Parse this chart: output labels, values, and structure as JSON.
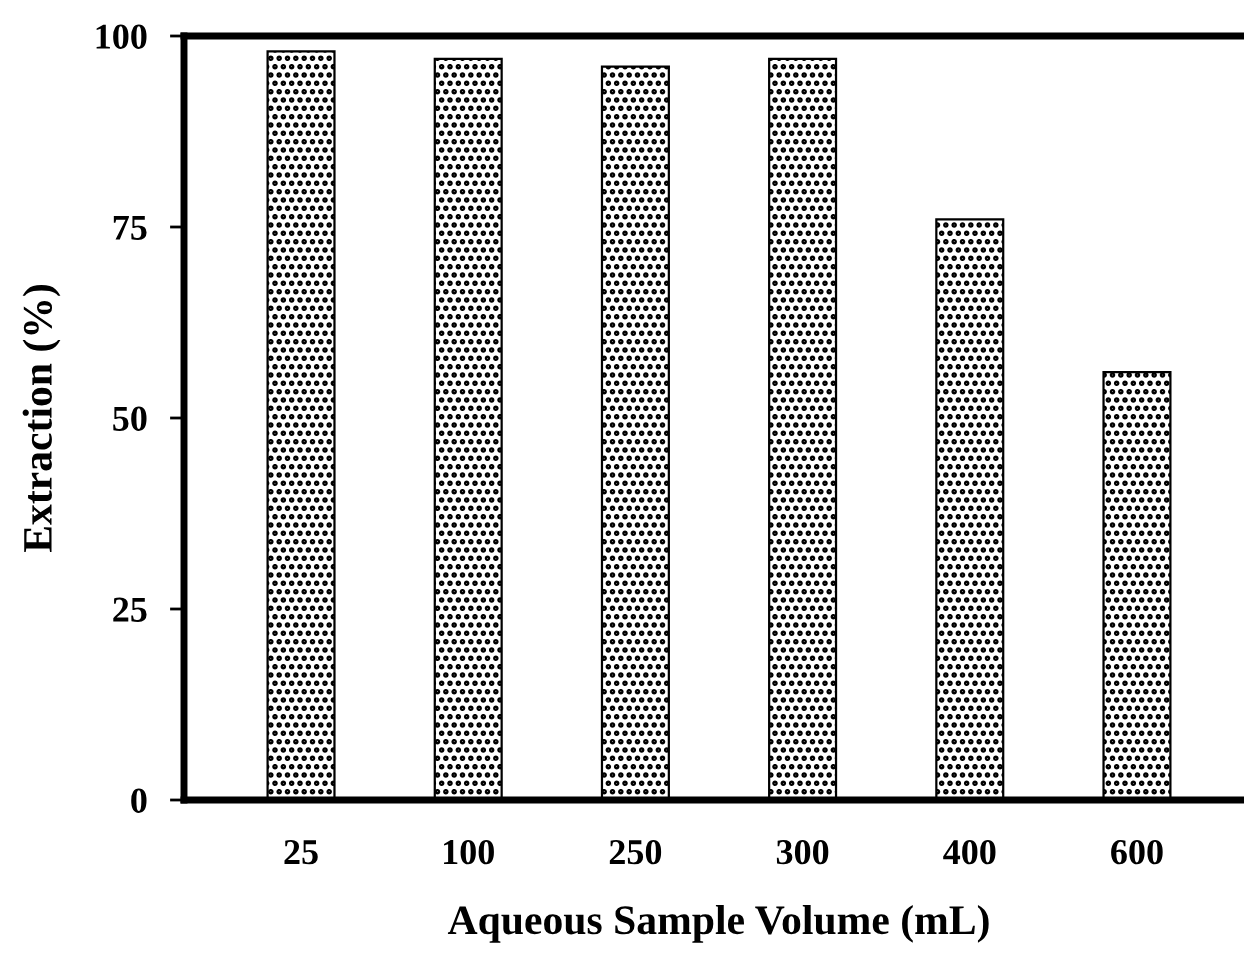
{
  "chart_data": {
    "type": "bar",
    "xlabel": "Aqueous Sample Volume (mL)",
    "ylabel": "Extraction (%)",
    "categories": [
      "25",
      "100",
      "250",
      "300",
      "400",
      "600"
    ],
    "values": [
      98,
      97,
      96,
      97,
      76,
      56
    ],
    "color": "#000000",
    "ylim": [
      0,
      100
    ],
    "yticks": [
      0,
      25,
      50,
      75,
      100
    ],
    "grid": false
  }
}
